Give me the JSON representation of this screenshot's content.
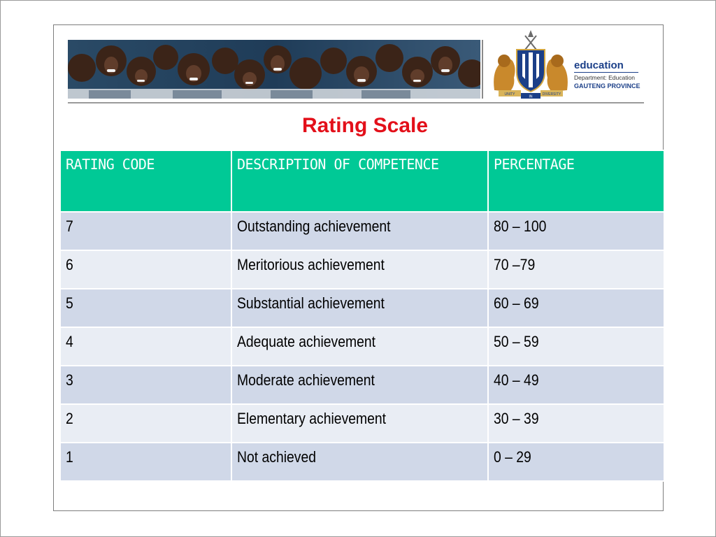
{
  "header": {
    "brand_title": "education",
    "brand_department": "Department: Education",
    "brand_province": "GAUTENG PROVINCE",
    "crest_ribbon_left": "UNITY",
    "crest_ribbon_mid": "IN",
    "crest_ribbon_right": "DIVERSITY"
  },
  "title": "Rating Scale",
  "table": {
    "headers": [
      "RATING CODE",
      "DESCRIPTION OF COMPETENCE",
      "PERCENTAGE"
    ],
    "rows": [
      [
        "7",
        "Outstanding achievement",
        "80 – 100"
      ],
      [
        "6",
        "Meritorious achievement",
        "70 –79"
      ],
      [
        "5",
        "Substantial achievement",
        "60 – 69"
      ],
      [
        "4",
        "Adequate achievement",
        "50 – 59"
      ],
      [
        "3",
        "Moderate achievement",
        "40 – 49"
      ],
      [
        "2",
        "Elementary achievement",
        "30 – 39"
      ],
      [
        "1",
        "Not achieved",
        "0 – 29"
      ]
    ]
  },
  "colors": {
    "title": "#e3101a",
    "header_bg": "#00c996",
    "row_odd": "#d0d8e8",
    "row_even": "#e9edf4",
    "brand_blue": "#1b3f88"
  }
}
